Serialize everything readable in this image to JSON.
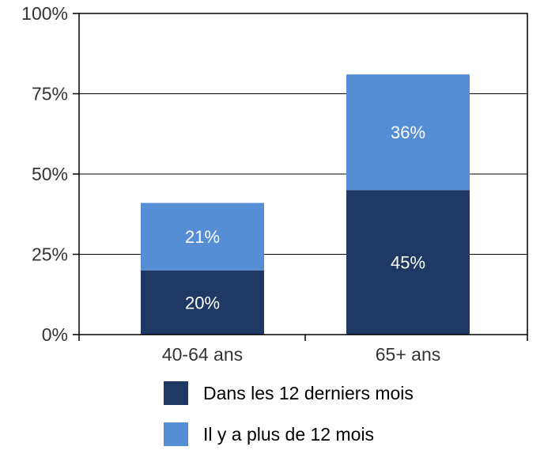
{
  "chart_data": {
    "type": "bar",
    "stacked": true,
    "categories": [
      "40-64 ans",
      "65+ ans"
    ],
    "series": [
      {
        "name": "Dans les 12 derniers mois",
        "values": [
          20,
          45
        ],
        "labels": [
          "20%",
          "45%"
        ],
        "color": "#1f3864"
      },
      {
        "name": "Il y a plus de 12 mois",
        "values": [
          21,
          36
        ],
        "labels": [
          "21%",
          "36%"
        ],
        "color": "#558ed5"
      }
    ],
    "ylim": [
      0,
      100
    ],
    "yticks": [
      0,
      25,
      50,
      75,
      100
    ],
    "ytick_labels": [
      "0%",
      "25%",
      "50%",
      "75%",
      "100%"
    ],
    "grid": true,
    "legend_position": "bottom",
    "title": "",
    "xlabel": "",
    "ylabel": ""
  }
}
